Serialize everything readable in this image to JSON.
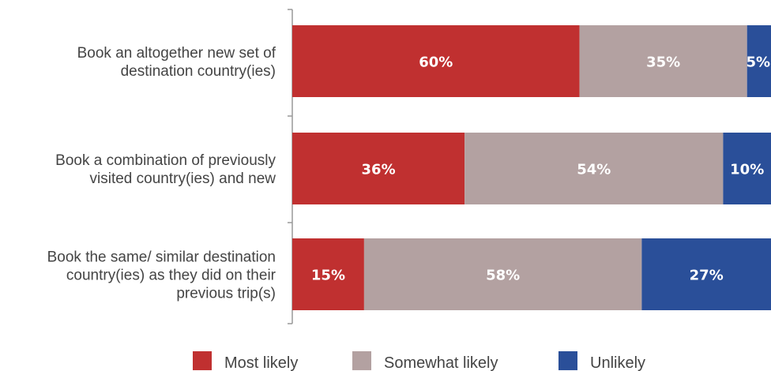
{
  "chart_data": {
    "type": "bar",
    "orientation": "horizontal",
    "stacked": true,
    "categories": [
      [
        "Book an altogether new set of",
        "destination country(ies)"
      ],
      [
        "Book a combination of previously",
        "visited country(ies) and new"
      ],
      [
        "Book the same/ similar destination",
        "country(ies) as they did on their",
        "previous trip(s)"
      ]
    ],
    "series": [
      {
        "name": "Most likely",
        "values": [
          60,
          36,
          15
        ],
        "labels": [
          "60%",
          "36%",
          "15%"
        ],
        "color": "#c03030"
      },
      {
        "name": "Somewhat likely",
        "values": [
          35,
          54,
          58
        ],
        "labels": [
          "35%",
          "54%",
          "58%"
        ],
        "color": "#b3a1a1"
      },
      {
        "name": "Unlikely",
        "values": [
          5,
          10,
          27
        ],
        "labels": [
          "5%",
          "10%",
          "27%"
        ],
        "color": "#2a4f99"
      }
    ],
    "xlim": [
      0,
      100
    ],
    "grid": false,
    "legend": "bottom",
    "axis_color": "#999999"
  }
}
